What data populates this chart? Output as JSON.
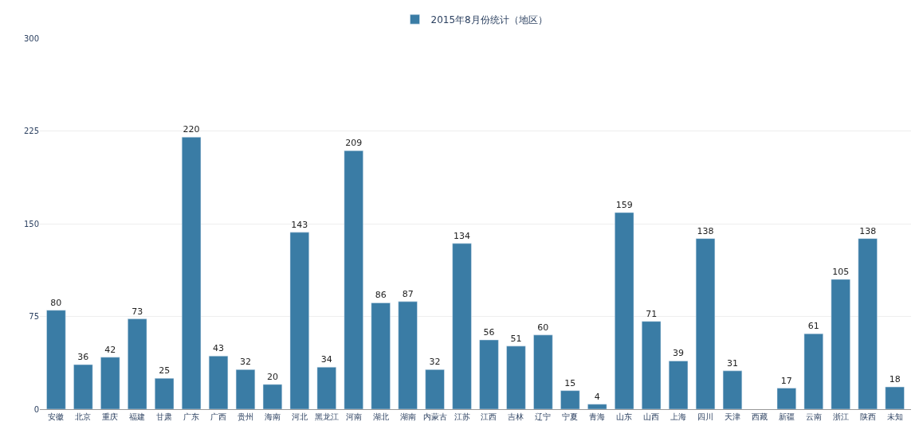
{
  "chart_data": {
    "type": "bar",
    "categories": [
      "安徽",
      "北京",
      "重庆",
      "福建",
      "甘肃",
      "广东",
      "广西",
      "贵州",
      "海南",
      "河北",
      "黑龙江",
      "河南",
      "湖北",
      "湖南",
      "内蒙古",
      "江苏",
      "江西",
      "吉林",
      "辽宁",
      "宁夏",
      "青海",
      "山东",
      "山西",
      "上海",
      "四川",
      "天津",
      "西藏",
      "新疆",
      "云南",
      "浙江",
      "陕西",
      "未知"
    ],
    "series": [
      {
        "name": "2015年8月份统计（地区）",
        "color": "#3a7ca5",
        "values": [
          80,
          36,
          42,
          73,
          25,
          220,
          43,
          32,
          20,
          143,
          34,
          209,
          86,
          87,
          32,
          134,
          56,
          51,
          60,
          15,
          4,
          159,
          71,
          39,
          138,
          31,
          null,
          17,
          61,
          105,
          138,
          18
        ]
      }
    ],
    "ylim": [
      0,
      300
    ],
    "yticks": [
      0,
      75,
      150,
      225,
      300
    ],
    "grid": "y",
    "legend": "top",
    "data_labels": true
  }
}
